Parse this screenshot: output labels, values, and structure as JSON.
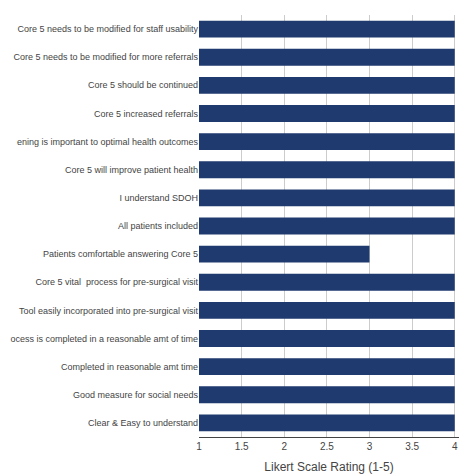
{
  "chart_data": {
    "type": "bar",
    "orientation": "horizontal",
    "categories": [
      "Core 5 needs to be modified for staff usability",
      "Core 5 needs to be modified for more referrals",
      "Core 5 should be continued",
      "Core 5 increased referrals",
      "ening is important to optimal health outcomes",
      "Core 5 will improve patient health",
      "I understand SDOH",
      "All patients included",
      "Patients comfortable answering Core 5",
      "Core 5 vital  process for pre-surgical visit",
      "Tool easily incorporated into pre-surgical visit",
      "ocess is completed in a reasonable amt of time",
      "Completed in reasonable amt time",
      "Good measure for social needs",
      "Clear & Easy to understand"
    ],
    "values": [
      4.0,
      4.0,
      4.0,
      4.0,
      4.0,
      4.0,
      4.0,
      4.0,
      3.0,
      4.0,
      4.0,
      4.0,
      4.0,
      4.0,
      4.0
    ],
    "color": "#1F3A6E",
    "xlabel": "Likert Scale Rating (1-5)",
    "xlim": [
      1,
      4.05
    ],
    "xticks": [
      1,
      1.5,
      2,
      2.5,
      3,
      3.5,
      4
    ],
    "grid": true
  }
}
